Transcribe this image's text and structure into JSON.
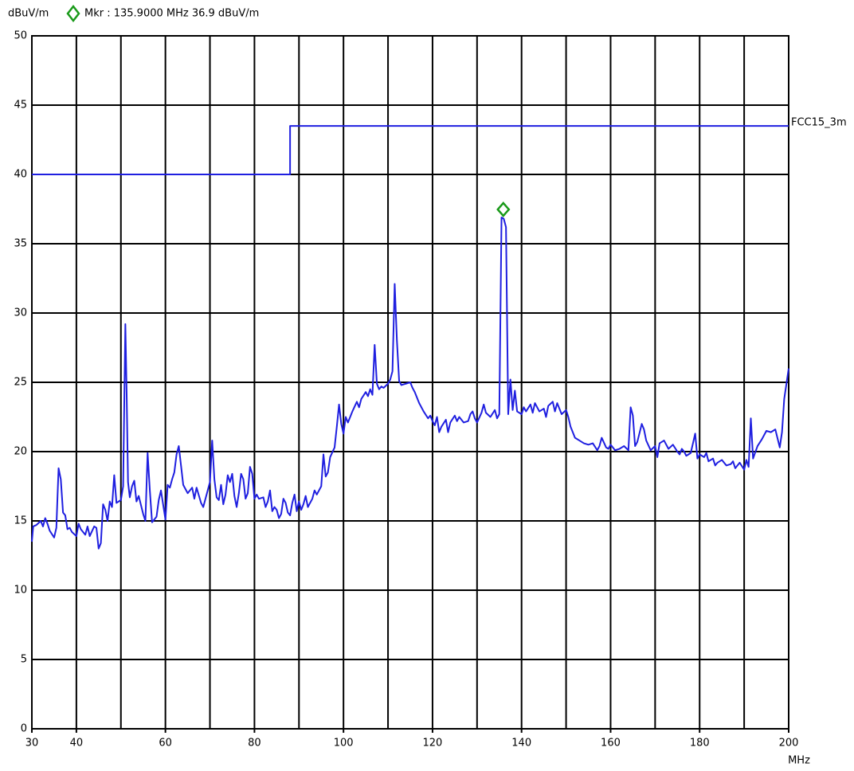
{
  "chart_data": {
    "type": "line",
    "y_label": "dBuV/m",
    "x_label": "MHz",
    "xlim": [
      30,
      200
    ],
    "ylim": [
      0,
      50
    ],
    "xticks": [
      30,
      40,
      60,
      80,
      100,
      120,
      140,
      160,
      180,
      200
    ],
    "xgrid": [
      40,
      50,
      60,
      70,
      80,
      90,
      100,
      110,
      120,
      130,
      140,
      150,
      160,
      170,
      180,
      190
    ],
    "yticks": [
      0,
      5,
      10,
      15,
      20,
      25,
      30,
      35,
      40,
      45,
      50
    ],
    "grid": true,
    "marker": {
      "label": "Mkr : 135.9000 MHz 36.9 dBuV/m",
      "x": 135.9,
      "y": 36.9,
      "color": "#1a9a1a"
    },
    "series": [
      {
        "color": "#1f1fe0",
        "x": [
          30,
          30.3,
          31,
          32,
          32.5,
          33,
          33.5,
          34,
          35,
          35.5,
          36,
          36.5,
          37,
          37.5,
          38,
          38.5,
          39,
          40,
          40.5,
          41,
          42,
          42.5,
          43,
          44,
          44.5,
          45,
          45.5,
          46,
          46.5,
          47,
          47.5,
          48,
          48.5,
          49,
          50,
          50.5,
          51,
          51.3,
          51.6,
          52,
          52.5,
          53,
          53.5,
          54,
          55,
          55.5,
          56,
          56.5,
          57,
          58,
          58.5,
          59,
          60,
          60.5,
          61,
          61.5,
          62,
          62.5,
          63,
          63.5,
          64,
          64.5,
          65,
          66,
          66.5,
          67,
          68,
          68.5,
          69,
          70,
          70.5,
          71,
          71.5,
          72,
          72.5,
          73,
          73.5,
          74,
          74.5,
          75,
          75.5,
          76,
          76.5,
          77,
          77.5,
          78,
          78.5,
          79,
          79.5,
          80,
          80.5,
          81,
          82,
          82.5,
          83,
          83.5,
          84,
          84.5,
          85,
          85.5,
          86,
          86.5,
          87,
          87.5,
          88,
          88.5,
          89,
          89.5,
          90,
          90.5,
          91,
          91.5,
          92,
          93,
          93.5,
          94,
          95,
          95.5,
          96,
          96.5,
          97,
          98,
          98.5,
          99,
          99.5,
          100,
          100.5,
          101,
          102,
          103,
          103.5,
          104,
          105,
          105.5,
          106,
          106.5,
          107,
          107.5,
          108,
          108.5,
          109,
          110,
          110.5,
          111,
          111.5,
          112,
          112.5,
          113,
          114,
          115,
          115.5,
          116,
          117,
          118,
          119,
          119.5,
          120,
          120.5,
          121,
          121.5,
          122,
          123,
          123.5,
          124,
          125,
          125.5,
          126,
          127,
          128,
          128.5,
          129,
          129.5,
          130,
          131,
          131.5,
          132,
          133,
          134,
          134.5,
          135,
          135.5,
          136,
          136.5,
          137,
          137.5,
          138,
          138.5,
          139,
          140,
          140.5,
          141,
          142,
          142.5,
          143,
          144,
          145,
          145.5,
          146,
          147,
          147.5,
          148,
          149,
          150,
          150.5,
          151,
          152,
          153,
          154,
          155,
          156,
          157,
          157.5,
          158,
          159,
          159.5,
          160,
          161,
          162,
          163,
          164,
          164.5,
          165,
          165.5,
          166,
          167,
          167.5,
          168,
          169,
          170,
          170.5,
          171,
          172,
          173,
          174,
          175,
          175.5,
          176,
          176.5,
          177,
          178,
          179,
          179.5,
          180,
          181,
          181.5,
          182,
          183,
          183.5,
          184,
          185,
          186,
          187,
          187.5,
          188,
          189,
          190,
          190.5,
          191,
          191.5,
          192,
          193,
          194,
          195,
          196,
          197,
          198,
          198.5,
          199,
          200
        ],
        "values": [
          13.5,
          14.6,
          14.7,
          15.0,
          14.6,
          15.2,
          14.8,
          14.3,
          13.8,
          14.5,
          18.8,
          18.0,
          15.6,
          15.4,
          14.4,
          14.5,
          14.2,
          13.9,
          14.8,
          14.4,
          14.0,
          14.6,
          13.9,
          14.6,
          14.5,
          13.0,
          13.4,
          16.2,
          15.8,
          15.0,
          16.4,
          16.0,
          18.3,
          16.3,
          16.5,
          17.5,
          29.2,
          24.0,
          17.8,
          16.7,
          17.5,
          17.9,
          16.4,
          16.8,
          15.5,
          15.0,
          19.9,
          17.2,
          14.9,
          15.3,
          16.5,
          17.2,
          15.1,
          17.6,
          17.4,
          18.0,
          18.5,
          19.8,
          20.4,
          19.0,
          17.6,
          17.3,
          17.0,
          17.4,
          16.6,
          17.4,
          16.3,
          16.0,
          16.6,
          17.8,
          20.8,
          18.0,
          16.7,
          16.5,
          17.6,
          16.2,
          16.9,
          18.3,
          17.8,
          18.4,
          16.8,
          16.0,
          17.0,
          18.4,
          18.0,
          16.6,
          17.0,
          18.9,
          18.4,
          16.6,
          16.9,
          16.6,
          16.7,
          16.0,
          16.4,
          17.2,
          15.7,
          16.0,
          15.8,
          15.2,
          15.5,
          16.6,
          16.3,
          15.6,
          15.4,
          16.3,
          16.9,
          15.7,
          16.4,
          15.8,
          16.2,
          16.8,
          16.0,
          16.6,
          17.2,
          16.9,
          17.5,
          19.8,
          18.2,
          18.5,
          19.6,
          20.3,
          21.8,
          23.4,
          22.0,
          21.3,
          22.5,
          22.1,
          22.9,
          23.6,
          23.2,
          23.8,
          24.3,
          24.0,
          24.5,
          24.1,
          27.7,
          24.9,
          24.5,
          24.7,
          24.6,
          24.9,
          25.2,
          25.8,
          32.1,
          28.0,
          25.1,
          24.8,
          24.9,
          25.0,
          24.6,
          24.3,
          23.5,
          22.9,
          22.4,
          22.6,
          22.2,
          21.9,
          22.5,
          21.4,
          21.8,
          22.3,
          21.4,
          22.1,
          22.6,
          22.2,
          22.5,
          22.1,
          22.2,
          22.7,
          22.9,
          22.4,
          22.1,
          22.8,
          23.4,
          22.8,
          22.5,
          23.0,
          22.4,
          22.7,
          36.9,
          36.8,
          36.2,
          22.7,
          25.2,
          23.0,
          24.4,
          22.9,
          22.7,
          23.2,
          22.9,
          23.4,
          22.8,
          23.5,
          22.9,
          23.1,
          22.5,
          23.3,
          23.6,
          22.9,
          23.5,
          22.7,
          23.0,
          22.5,
          21.8,
          21.0,
          20.8,
          20.6,
          20.5,
          20.6,
          20.1,
          20.4,
          21.0,
          20.3,
          20.2,
          20.5,
          20.1,
          20.2,
          20.4,
          20.1,
          23.2,
          22.6,
          20.4,
          20.7,
          22.0,
          21.6,
          20.8,
          20.1,
          20.4,
          19.6,
          20.6,
          20.8,
          20.2,
          20.5,
          20.0,
          19.8,
          20.2,
          20.0,
          19.7,
          19.9,
          21.3,
          19.5,
          19.8,
          19.6,
          19.9,
          19.3,
          19.5,
          19.0,
          19.2,
          19.4,
          19.0,
          19.1,
          19.3,
          18.8,
          19.2,
          18.7,
          19.4,
          18.9,
          22.4,
          19.5,
          20.4,
          20.9,
          21.5,
          21.4,
          21.6,
          20.3,
          21.4,
          23.8,
          26.0
        ]
      },
      {
        "name": "FCC15_3m",
        "color": "#1f1fe0",
        "x": [
          30,
          88,
          88,
          200
        ],
        "values": [
          40,
          40,
          43.5,
          43.5
        ]
      }
    ]
  }
}
